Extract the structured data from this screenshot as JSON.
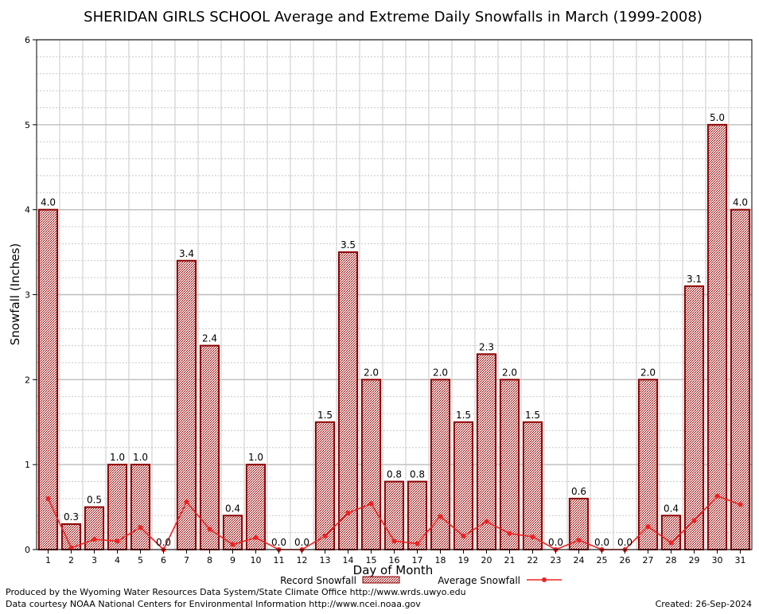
{
  "chart_data": {
    "type": "bar",
    "title": "SHERIDAN GIRLS SCHOOL Average and Extreme Daily Snowfalls in March (1999-2008)",
    "xlabel": "Day of Month",
    "ylabel": "Snowfall (Inches)",
    "ylim": [
      0,
      6
    ],
    "yticks": [
      "0",
      "1",
      "2",
      "3",
      "4",
      "5",
      "6"
    ],
    "grid": true,
    "categories": [
      "1",
      "2",
      "3",
      "4",
      "5",
      "6",
      "7",
      "8",
      "9",
      "10",
      "11",
      "12",
      "13",
      "14",
      "15",
      "16",
      "17",
      "18",
      "19",
      "20",
      "21",
      "22",
      "23",
      "24",
      "25",
      "26",
      "27",
      "28",
      "29",
      "30",
      "31"
    ],
    "series": [
      {
        "name": "Record Snowfall",
        "kind": "bar",
        "values": [
          4.0,
          0.3,
          0.5,
          1.0,
          1.0,
          0.0,
          3.4,
          2.4,
          0.4,
          1.0,
          0.0,
          0.0,
          1.5,
          3.5,
          2.0,
          0.8,
          0.8,
          2.0,
          1.5,
          2.3,
          2.0,
          1.5,
          0.0,
          0.6,
          0.0,
          0.0,
          2.0,
          0.4,
          3.1,
          5.0,
          4.0
        ],
        "labels": [
          "4.0",
          "0.3",
          "0.5",
          "1.0",
          "1.0",
          "0.0",
          "3.4",
          "2.4",
          "0.4",
          "1.0",
          "0.0",
          "0.0",
          "1.5",
          "3.5",
          "2.0",
          "0.8",
          "0.8",
          "2.0",
          "1.5",
          "2.3",
          "2.0",
          "1.5",
          "0.0",
          "0.6",
          "0.0",
          "0.0",
          "2.0",
          "0.4",
          "3.1",
          "5.0",
          "4.0"
        ],
        "color": "#8b0000",
        "fill": "#d9a0a0"
      },
      {
        "name": "Average Snowfall",
        "kind": "line",
        "values": [
          0.6,
          0.02,
          0.12,
          0.1,
          0.26,
          0.0,
          0.56,
          0.24,
          0.06,
          0.14,
          0.0,
          0.0,
          0.16,
          0.43,
          0.54,
          0.1,
          0.07,
          0.39,
          0.16,
          0.33,
          0.19,
          0.15,
          0.0,
          0.11,
          0.0,
          0.0,
          0.27,
          0.08,
          0.34,
          0.63,
          0.53
        ],
        "color": "#ee2222"
      }
    ],
    "legend_position": "bottom"
  },
  "footer": {
    "produced_by": "Produced by the Wyoming Water Resources Data System/State Climate Office http://www.wrds.uwyo.edu",
    "courtesy": "Data courtesy NOAA National Centers for Environmental Information http://www.ncei.noaa.gov",
    "created": "Created:  26-Sep-2024"
  }
}
